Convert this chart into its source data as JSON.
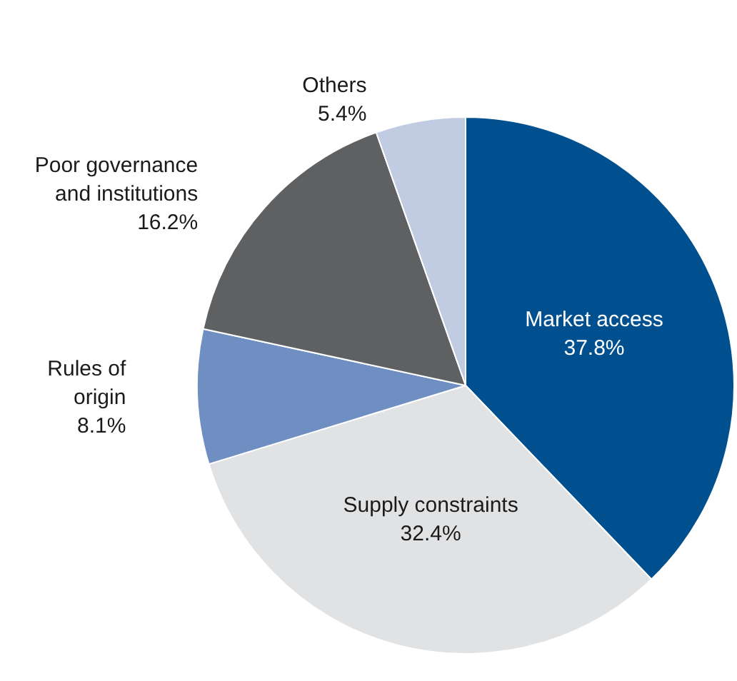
{
  "chart_data": {
    "type": "pie",
    "categories": [
      "Market access",
      "Supply constraints",
      "Rules of\norigin",
      "Poor governance\nand institutions",
      "Others"
    ],
    "values": [
      37.8,
      32.4,
      8.1,
      16.2,
      5.4
    ],
    "colors": [
      "#00508f",
      "#e1e2e4",
      "#6f8fc2",
      "#5f6062",
      "#c1cce3"
    ],
    "value_labels": [
      "37.8%",
      "32.4%",
      "8.1%",
      "16.2%",
      "5.4%"
    ],
    "legend": false
  }
}
